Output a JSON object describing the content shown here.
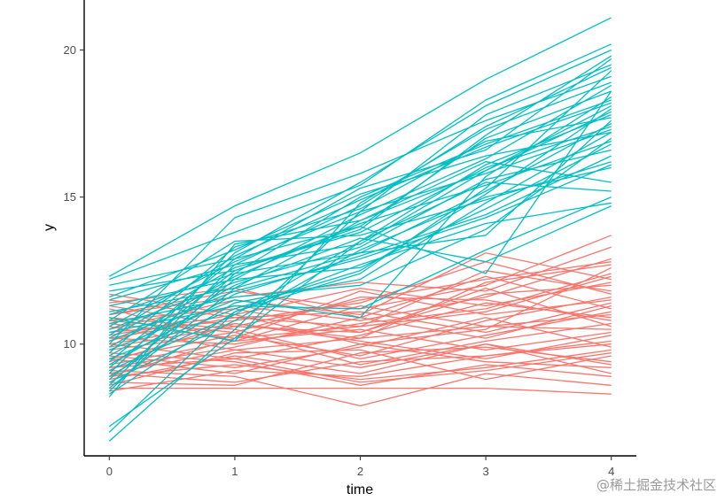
{
  "chart_data": {
    "type": "line",
    "title": "",
    "xlabel": "time",
    "ylabel": "y",
    "x": [
      0,
      1,
      2,
      3,
      4
    ],
    "xlim": [
      -0.2,
      4.2
    ],
    "ylim": [
      6.2,
      21.7
    ],
    "xticks": [
      "0",
      "1",
      "2",
      "3",
      "4"
    ],
    "yticks": [
      "10",
      "15",
      "20"
    ],
    "grid": false,
    "legend": "none",
    "groups": [
      {
        "name": "group-red",
        "color": "#F8766D",
        "series": [
          [
            8.4,
            9.1,
            8.9,
            9.6,
            10.1
          ],
          [
            9.0,
            9.8,
            10.2,
            10.6,
            11.0
          ],
          [
            9.5,
            10.3,
            9.6,
            10.8,
            11.6
          ],
          [
            10.2,
            10.0,
            10.7,
            11.2,
            12.4
          ],
          [
            10.8,
            11.2,
            10.4,
            11.7,
            12.0
          ],
          [
            11.3,
            10.6,
            11.5,
            12.2,
            12.8
          ],
          [
            9.2,
            9.9,
            10.9,
            10.2,
            11.3
          ],
          [
            8.7,
            8.6,
            9.7,
            9.9,
            9.4
          ],
          [
            10.5,
            11.5,
            11.0,
            13.1,
            12.2
          ],
          [
            11.0,
            11.8,
            11.2,
            12.0,
            13.7
          ],
          [
            9.8,
            10.4,
            9.3,
            10.1,
            10.7
          ],
          [
            10.0,
            9.5,
            10.3,
            11.4,
            10.9
          ],
          [
            8.9,
            9.3,
            8.8,
            9.2,
            9.8
          ],
          [
            9.4,
            10.7,
            10.1,
            9.5,
            10.3
          ],
          [
            10.7,
            10.2,
            11.8,
            11.0,
            11.5
          ],
          [
            11.5,
            10.9,
            10.6,
            12.5,
            11.8
          ],
          [
            9.1,
            8.9,
            7.9,
            9.0,
            8.6
          ],
          [
            8.5,
            8.5,
            8.5,
            8.5,
            8.3
          ],
          [
            10.3,
            11.0,
            10.0,
            10.5,
            12.6
          ],
          [
            9.6,
            9.2,
            9.9,
            10.9,
            9.9
          ],
          [
            10.9,
            10.5,
            9.5,
            10.3,
            11.1
          ],
          [
            11.2,
            10.1,
            11.3,
            10.6,
            10.5
          ],
          [
            9.3,
            10.1,
            10.5,
            9.8,
            10.4
          ],
          [
            8.8,
            9.6,
            9.0,
            10.0,
            9.0
          ],
          [
            10.1,
            11.3,
            10.8,
            11.6,
            12.9
          ],
          [
            11.7,
            11.0,
            11.9,
            11.3,
            12.1
          ],
          [
            9.7,
            9.4,
            8.6,
            9.3,
            8.9
          ],
          [
            10.4,
            10.8,
            11.4,
            12.8,
            11.7
          ],
          [
            8.6,
            9.7,
            9.8,
            8.8,
            9.6
          ],
          [
            9.9,
            10.6,
            10.4,
            11.9,
            10.6
          ],
          [
            10.6,
            9.8,
            9.2,
            10.0,
            9.3
          ],
          [
            11.0,
            11.6,
            12.1,
            11.8,
            13.3
          ],
          [
            9.0,
            8.7,
            9.4,
            9.6,
            10.0
          ],
          [
            10.2,
            10.9,
            11.1,
            10.4,
            11.4
          ],
          [
            8.9,
            10.2,
            10.6,
            11.1,
            12.3
          ],
          [
            11.4,
            11.9,
            10.9,
            12.3,
            11.2
          ],
          [
            9.5,
            9.0,
            10.0,
            9.4,
            9.2
          ],
          [
            10.8,
            10.4,
            11.6,
            11.5,
            10.8
          ],
          [
            9.2,
            9.5,
            8.7,
            9.1,
            9.7
          ],
          [
            10.0,
            10.7,
            10.2,
            12.1,
            12.7
          ]
        ]
      },
      {
        "name": "group-teal",
        "color": "#00BFC4",
        "series": [
          [
            7.2,
            10.2,
            13.5,
            16.1,
            17.8
          ],
          [
            7.0,
            11.1,
            12.4,
            15.3,
            19.3
          ],
          [
            6.7,
            10.5,
            14.5,
            15.8,
            17.3
          ],
          [
            12.3,
            14.7,
            16.5,
            19.0,
            21.1
          ],
          [
            12.2,
            13.8,
            15.4,
            18.3,
            20.2
          ],
          [
            12.0,
            12.9,
            14.0,
            12.4,
            18.6
          ],
          [
            11.8,
            12.5,
            13.9,
            17.1,
            19.8
          ],
          [
            11.6,
            13.2,
            15.1,
            16.4,
            17.2
          ],
          [
            11.5,
            12.7,
            13.4,
            15.9,
            18.1
          ],
          [
            11.3,
            12.2,
            12.6,
            14.6,
            16.8
          ],
          [
            11.1,
            11.9,
            14.2,
            16.2,
            15.5
          ],
          [
            11.0,
            12.4,
            13.1,
            15.2,
            17.5
          ],
          [
            10.9,
            10.1,
            14.8,
            17.3,
            18.9
          ],
          [
            10.8,
            13.5,
            13.7,
            14.9,
            16.2
          ],
          [
            10.7,
            11.6,
            12.0,
            13.9,
            17.0
          ],
          [
            10.6,
            12.8,
            14.5,
            17.8,
            19.5
          ],
          [
            10.5,
            12.1,
            13.3,
            15.6,
            16.6
          ],
          [
            10.4,
            11.3,
            11.2,
            13.2,
            15.0
          ],
          [
            10.3,
            13.0,
            14.9,
            16.7,
            18.2
          ],
          [
            10.2,
            12.6,
            13.8,
            16.0,
            17.4
          ],
          [
            10.1,
            11.8,
            12.9,
            14.3,
            16.1
          ],
          [
            10.0,
            14.3,
            15.8,
            17.6,
            19.1
          ],
          [
            9.9,
            12.3,
            14.1,
            15.4,
            16.9
          ],
          [
            9.8,
            11.5,
            10.9,
            15.7,
            18.4
          ],
          [
            9.7,
            13.3,
            14.6,
            16.9,
            17.7
          ],
          [
            9.6,
            12.0,
            13.6,
            12.8,
            14.7
          ],
          [
            9.5,
            11.2,
            12.5,
            15.1,
            18.0
          ],
          [
            9.4,
            12.9,
            15.3,
            16.6,
            19.7
          ],
          [
            9.3,
            11.7,
            13.0,
            14.4,
            16.4
          ],
          [
            9.2,
            12.5,
            14.0,
            17.0,
            18.6
          ],
          [
            9.1,
            11.0,
            13.5,
            15.5,
            15.2
          ],
          [
            9.0,
            13.1,
            15.5,
            18.1,
            20.0
          ],
          [
            8.9,
            11.4,
            12.2,
            14.8,
            17.2
          ],
          [
            8.8,
            12.2,
            14.4,
            16.3,
            18.8
          ],
          [
            8.7,
            10.8,
            13.2,
            15.0,
            16.0
          ],
          [
            8.6,
            12.7,
            14.7,
            17.4,
            19.4
          ],
          [
            8.5,
            11.9,
            13.1,
            13.7,
            17.6
          ],
          [
            8.4,
            12.4,
            15.0,
            16.8,
            18.3
          ],
          [
            8.3,
            11.1,
            12.7,
            14.1,
            14.8
          ],
          [
            8.2,
            13.4,
            14.2,
            15.9,
            17.9
          ]
        ]
      }
    ]
  },
  "watermark": "@稀土掘金技术社区"
}
